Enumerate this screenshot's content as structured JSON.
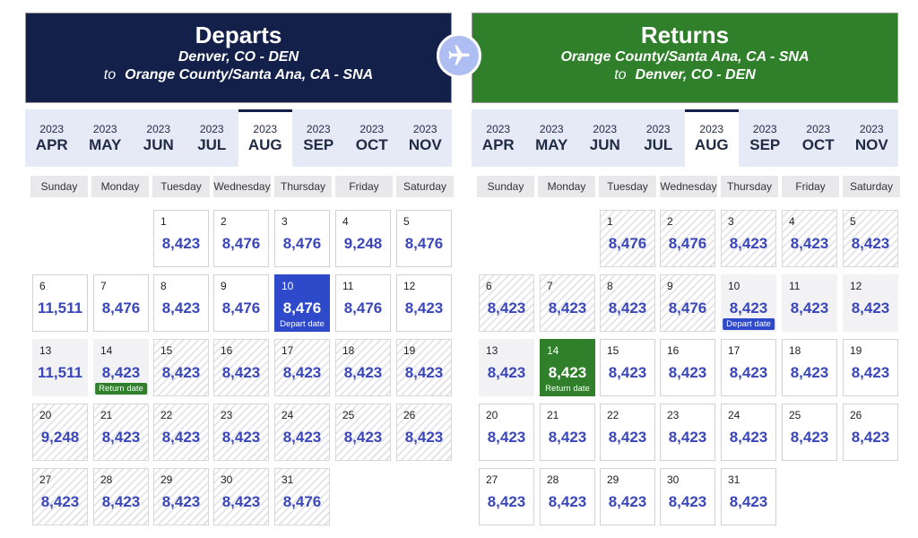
{
  "departs": {
    "title": "Departs",
    "origin": "Denver, CO - DEN",
    "to_label": "to",
    "destination": "Orange County/Santa Ana, CA - SNA",
    "months": [
      {
        "year": "2023",
        "label": "APR"
      },
      {
        "year": "2023",
        "label": "MAY"
      },
      {
        "year": "2023",
        "label": "JUN"
      },
      {
        "year": "2023",
        "label": "JUL"
      },
      {
        "year": "2023",
        "label": "AUG",
        "active": true
      },
      {
        "year": "2023",
        "label": "SEP"
      },
      {
        "year": "2023",
        "label": "OCT"
      },
      {
        "year": "2023",
        "label": "NOV"
      }
    ],
    "weekdays": [
      "Sunday",
      "Monday",
      "Tuesday",
      "Wednesday",
      "Thursday",
      "Friday",
      "Saturday"
    ],
    "days": [
      {
        "day": "1",
        "price": "8,423"
      },
      {
        "day": "2",
        "price": "8,476"
      },
      {
        "day": "3",
        "price": "8,476"
      },
      {
        "day": "4",
        "price": "9,248"
      },
      {
        "day": "5",
        "price": "8,476"
      },
      {
        "day": "6",
        "price": "11,511"
      },
      {
        "day": "7",
        "price": "8,476"
      },
      {
        "day": "8",
        "price": "8,423"
      },
      {
        "day": "9",
        "price": "8,476"
      },
      {
        "day": "10",
        "price": "8,476",
        "tag": "Depart date"
      },
      {
        "day": "11",
        "price": "8,476"
      },
      {
        "day": "12",
        "price": "8,423"
      },
      {
        "day": "13",
        "price": "11,511"
      },
      {
        "day": "14",
        "price": "8,423",
        "tag": "Return date"
      },
      {
        "day": "15",
        "price": "8,423"
      },
      {
        "day": "16",
        "price": "8,423"
      },
      {
        "day": "17",
        "price": "8,423"
      },
      {
        "day": "18",
        "price": "8,423"
      },
      {
        "day": "19",
        "price": "8,423"
      },
      {
        "day": "20",
        "price": "9,248"
      },
      {
        "day": "21",
        "price": "8,423"
      },
      {
        "day": "22",
        "price": "8,423"
      },
      {
        "day": "23",
        "price": "8,423"
      },
      {
        "day": "24",
        "price": "8,423"
      },
      {
        "day": "25",
        "price": "8,423"
      },
      {
        "day": "26",
        "price": "8,423"
      },
      {
        "day": "27",
        "price": "8,423"
      },
      {
        "day": "28",
        "price": "8,423"
      },
      {
        "day": "29",
        "price": "8,423"
      },
      {
        "day": "30",
        "price": "8,423"
      },
      {
        "day": "31",
        "price": "8,476"
      }
    ]
  },
  "returns": {
    "title": "Returns",
    "origin": "Orange County/Santa Ana, CA - SNA",
    "to_label": "to",
    "destination": "Denver, CO - DEN",
    "months": [
      {
        "year": "2023",
        "label": "APR"
      },
      {
        "year": "2023",
        "label": "MAY"
      },
      {
        "year": "2023",
        "label": "JUN"
      },
      {
        "year": "2023",
        "label": "JUL"
      },
      {
        "year": "2023",
        "label": "AUG",
        "active": true
      },
      {
        "year": "2023",
        "label": "SEP"
      },
      {
        "year": "2023",
        "label": "OCT"
      },
      {
        "year": "2023",
        "label": "NOV"
      }
    ],
    "weekdays": [
      "Sunday",
      "Monday",
      "Tuesday",
      "Wednesday",
      "Thursday",
      "Friday",
      "Saturday"
    ],
    "days": [
      {
        "day": "1",
        "price": "8,476"
      },
      {
        "day": "2",
        "price": "8,476"
      },
      {
        "day": "3",
        "price": "8,423"
      },
      {
        "day": "4",
        "price": "8,423"
      },
      {
        "day": "5",
        "price": "8,423"
      },
      {
        "day": "6",
        "price": "8,423"
      },
      {
        "day": "7",
        "price": "8,423"
      },
      {
        "day": "8",
        "price": "8,423"
      },
      {
        "day": "9",
        "price": "8,476"
      },
      {
        "day": "10",
        "price": "8,423",
        "tag": "Depart date"
      },
      {
        "day": "11",
        "price": "8,423"
      },
      {
        "day": "12",
        "price": "8,423"
      },
      {
        "day": "13",
        "price": "8,423"
      },
      {
        "day": "14",
        "price": "8,423",
        "tag": "Return date"
      },
      {
        "day": "15",
        "price": "8,423"
      },
      {
        "day": "16",
        "price": "8,423"
      },
      {
        "day": "17",
        "price": "8,423"
      },
      {
        "day": "18",
        "price": "8,423"
      },
      {
        "day": "19",
        "price": "8,423"
      },
      {
        "day": "20",
        "price": "8,423"
      },
      {
        "day": "21",
        "price": "8,423"
      },
      {
        "day": "22",
        "price": "8,423"
      },
      {
        "day": "23",
        "price": "8,423"
      },
      {
        "day": "24",
        "price": "8,423"
      },
      {
        "day": "25",
        "price": "8,423"
      },
      {
        "day": "26",
        "price": "8,423"
      },
      {
        "day": "27",
        "price": "8,423"
      },
      {
        "day": "28",
        "price": "8,423"
      },
      {
        "day": "29",
        "price": "8,423"
      },
      {
        "day": "30",
        "price": "8,423"
      },
      {
        "day": "31",
        "price": "8,423"
      }
    ]
  },
  "swap_icon": "airplane-icon",
  "colors": {
    "departs_header": "#13204a",
    "returns_header": "#2f7f2b",
    "price_text": "#3a47b8",
    "depart_selected": "#2e49c9",
    "return_selected": "#2f7f2b"
  }
}
